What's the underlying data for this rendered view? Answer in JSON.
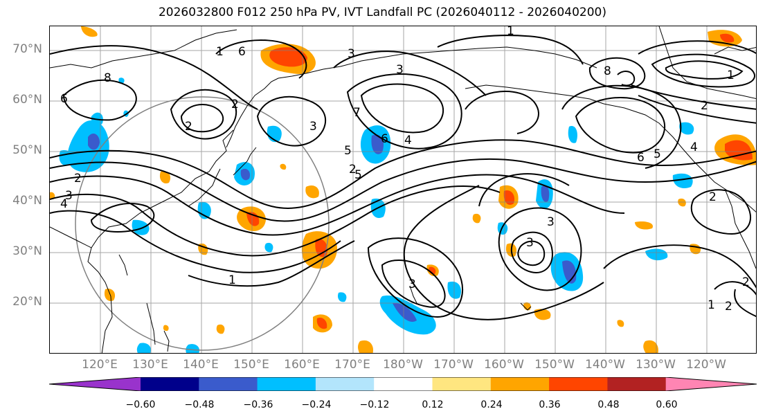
{
  "title": "2026032800 F012 250 hPa PV, IVT Landfall PC (2026040112 - 2026040200)",
  "latitude_labels": [
    "70°N",
    "60°N",
    "50°N",
    "40°N",
    "30°N",
    "20°N"
  ],
  "longitude_labels": [
    "120°E",
    "130°E",
    "140°E",
    "150°E",
    "160°E",
    "170°E",
    "180°W",
    "170°W",
    "160°W",
    "150°W",
    "140°W",
    "130°W",
    "120°W"
  ],
  "colorbar": {
    "ticks": [
      "−0.60",
      "−0.48",
      "−0.36",
      "−0.24",
      "−0.12",
      "0.12",
      "0.24",
      "0.36",
      "0.48",
      "0.60"
    ],
    "colors": [
      "#9933cc",
      "#00008b",
      "#3a5bcc",
      "#00bfff",
      "#b3e5fc",
      "#ffffff",
      "#ffe680",
      "#ffa500",
      "#ff4500",
      "#b22222",
      "#ff85b3"
    ]
  },
  "contour_labels": [
    "1",
    "6",
    "8",
    "3",
    "2",
    "7",
    "6",
    "2",
    "3",
    "4",
    "5",
    "2",
    "3",
    "1",
    "5",
    "3",
    "4",
    "6",
    "5",
    "2",
    "1",
    "6",
    "1",
    "8",
    "4",
    "3",
    "3",
    "2",
    "2",
    "1",
    "3",
    "2",
    "2"
  ],
  "colors": {
    "contour": "#000000",
    "coast": "#000000",
    "grid": "#808080",
    "circle": "#808080"
  }
}
